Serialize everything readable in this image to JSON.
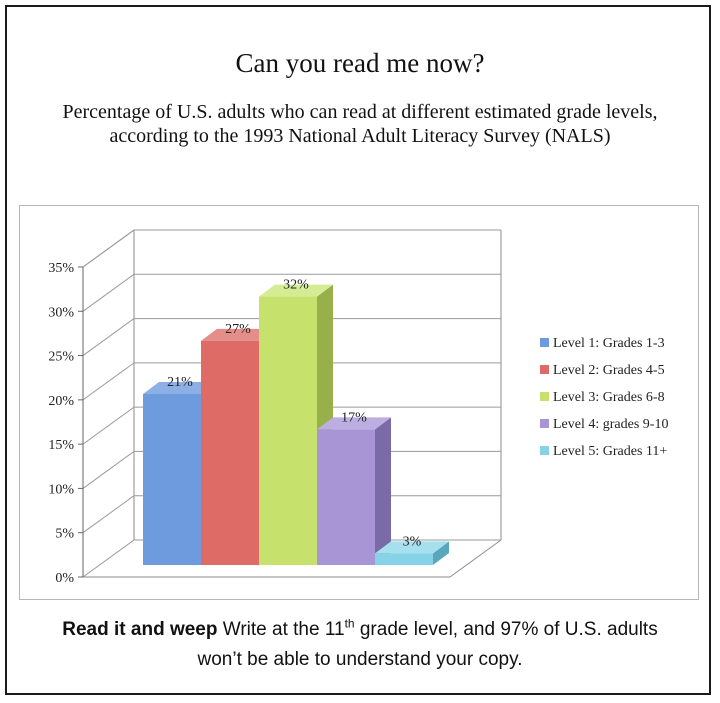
{
  "chart_data": {
    "type": "bar",
    "title": "Can you read me now?",
    "subtitle": "Percentage of U.S. adults who can read at different estimated grade levels, according to the 1993 National Adult Literacy Survey (NALS)",
    "categories": [
      "Level 1: Grades 1-3",
      "Level 2: Grades 4-5",
      "Level 3: Grades 6-8",
      "Level 4: grades 9-10",
      "Level 5: Grades 11+"
    ],
    "values": [
      21,
      27,
      32,
      17,
      3
    ],
    "data_labels": [
      "21%",
      "27%",
      "32%",
      "17%",
      "3%"
    ],
    "ytick_labels": [
      "0%",
      "5%",
      "10%",
      "15%",
      "20%",
      "25%",
      "30%",
      "35%"
    ],
    "yticks": [
      0,
      5,
      10,
      15,
      20,
      25,
      30,
      35
    ],
    "ylim": [
      0,
      35
    ],
    "grid": true,
    "legend_position": "right",
    "colors": [
      "#6e9bde",
      "#de6b66",
      "#c6e16c",
      "#a795d6",
      "#86d2e6"
    ],
    "side_colors": [
      "#4f76b3",
      "#b14b47",
      "#97b04a",
      "#7b6aa8",
      "#5aa6bb"
    ],
    "top_colors": [
      "#8cb0e6",
      "#e58d89",
      "#d6ec94",
      "#bcaee0",
      "#a6e0ee"
    ]
  },
  "caption": {
    "bold": "Read it and weep",
    "text_before_sup": " Write at the 11",
    "sup": "th",
    "text_after_sup": " grade level, and 97% of U.S. adults",
    "line2": "won’t be able to understand your copy."
  }
}
